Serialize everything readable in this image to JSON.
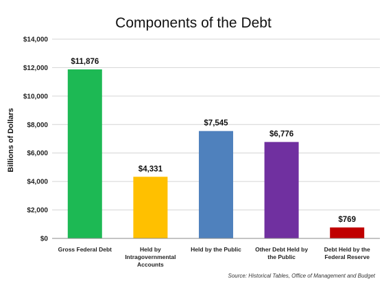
{
  "chart_data": {
    "type": "bar",
    "title": "Components of the Debt",
    "ylabel": "Billions of Dollars",
    "xlabel": "",
    "ylim": [
      0,
      14000
    ],
    "yticks": [
      0,
      2000,
      4000,
      6000,
      8000,
      10000,
      12000,
      14000
    ],
    "ytick_labels": [
      "$0",
      "$2,000",
      "$4,000",
      "$6,000",
      "$8,000",
      "$10,000",
      "$12,000",
      "$14,000"
    ],
    "grid": true,
    "categories": [
      [
        "Gross Federal Debt"
      ],
      [
        "Held by",
        "Intragovernmental",
        "Accounts"
      ],
      [
        "Held by the Public"
      ],
      [
        "Other Debt Held by",
        "the Public"
      ],
      [
        "Debt Held by the",
        "Federal Reserve"
      ]
    ],
    "values": [
      11876,
      4331,
      7545,
      6776,
      769
    ],
    "value_labels": [
      "$11,876",
      "$4,331",
      "$7,545",
      "$6,776",
      "$769"
    ],
    "colors": [
      "#1db954",
      "#ffc000",
      "#4f81bd",
      "#7030a0",
      "#c00000"
    ],
    "source": "Source: Historical Tables, Office of Management and Budget"
  }
}
